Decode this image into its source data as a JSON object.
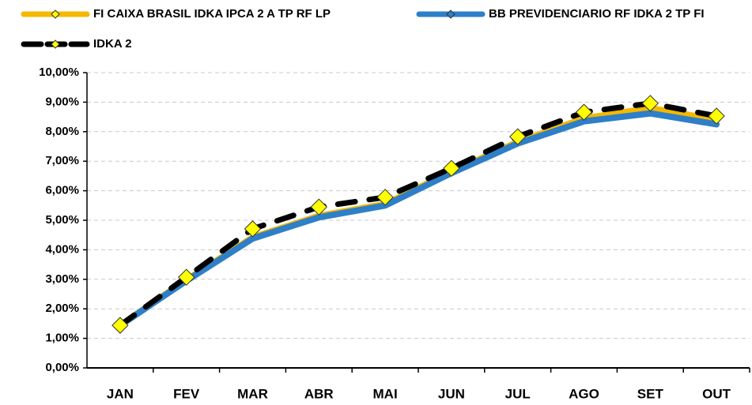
{
  "chart_data": {
    "type": "line",
    "categories": [
      "JAN",
      "FEV",
      "MAR",
      "ABR",
      "MAI",
      "JUN",
      "JUL",
      "AGO",
      "SET",
      "OUT"
    ],
    "series": [
      {
        "name": "FI CAIXA BRASIL IDKA IPCA 2 A TP RF LP",
        "color": "#f5b800",
        "dash": false,
        "marker_color": "#ffff00",
        "markers": false,
        "values": [
          1.44,
          2.98,
          4.42,
          5.15,
          5.55,
          6.65,
          7.65,
          8.45,
          8.8,
          8.4
        ]
      },
      {
        "name": "BB PREVIDENCIARIO RF IDKA 2 TP FI",
        "color": "#2e7fc8",
        "dash": false,
        "marker_color": "#2e7fc8",
        "markers": false,
        "values": [
          1.44,
          2.95,
          4.38,
          5.1,
          5.5,
          6.6,
          7.6,
          8.35,
          8.62,
          8.25
        ]
      },
      {
        "name": "IDKA 2",
        "color": "#000000",
        "dash": true,
        "marker_color": "#ffff00",
        "markers": true,
        "values": [
          1.44,
          3.07,
          4.71,
          5.45,
          5.78,
          6.76,
          7.83,
          8.66,
          8.96,
          8.53
        ]
      }
    ],
    "ylim": [
      0,
      10
    ],
    "yticks": [
      {
        "value": 0,
        "label": "0,00%"
      },
      {
        "value": 1,
        "label": "1,00%"
      },
      {
        "value": 2,
        "label": "2,00%"
      },
      {
        "value": 3,
        "label": "3,00%"
      },
      {
        "value": 4,
        "label": "4,00%"
      },
      {
        "value": 5,
        "label": "5,00%"
      },
      {
        "value": 6,
        "label": "6,00%"
      },
      {
        "value": 7,
        "label": "7,00%"
      },
      {
        "value": 8,
        "label": "8,00%"
      },
      {
        "value": 9,
        "label": "9,00%"
      },
      {
        "value": 10,
        "label": "10,00%"
      }
    ],
    "grid": true
  }
}
